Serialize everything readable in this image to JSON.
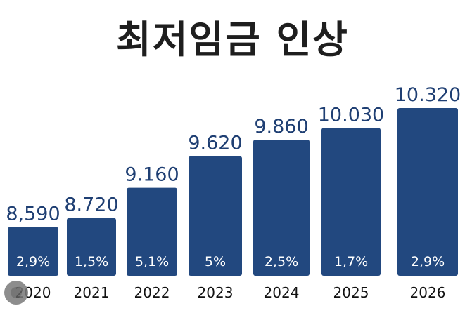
{
  "chart_data": {
    "type": "bar",
    "title": "최저임금 인상",
    "categories": [
      "2020",
      "2021",
      "2022",
      "2023",
      "2024",
      "2025",
      "2026"
    ],
    "values": [
      8590,
      8720,
      9160,
      9620,
      9860,
      10030,
      10320
    ],
    "value_labels": [
      "8,590",
      "8.720",
      "9.160",
      "9.620",
      "9.860",
      "10.030",
      "10.320"
    ],
    "change_labels": [
      "2,9%",
      "1,5%",
      "5,1%",
      "5%",
      "2,5%",
      "1,7%",
      "2,9%"
    ],
    "bar_color": "#22487f",
    "value_label_color": "#1f3f73",
    "ylim": [
      0,
      10320
    ],
    "grid": false,
    "legend": "none"
  }
}
